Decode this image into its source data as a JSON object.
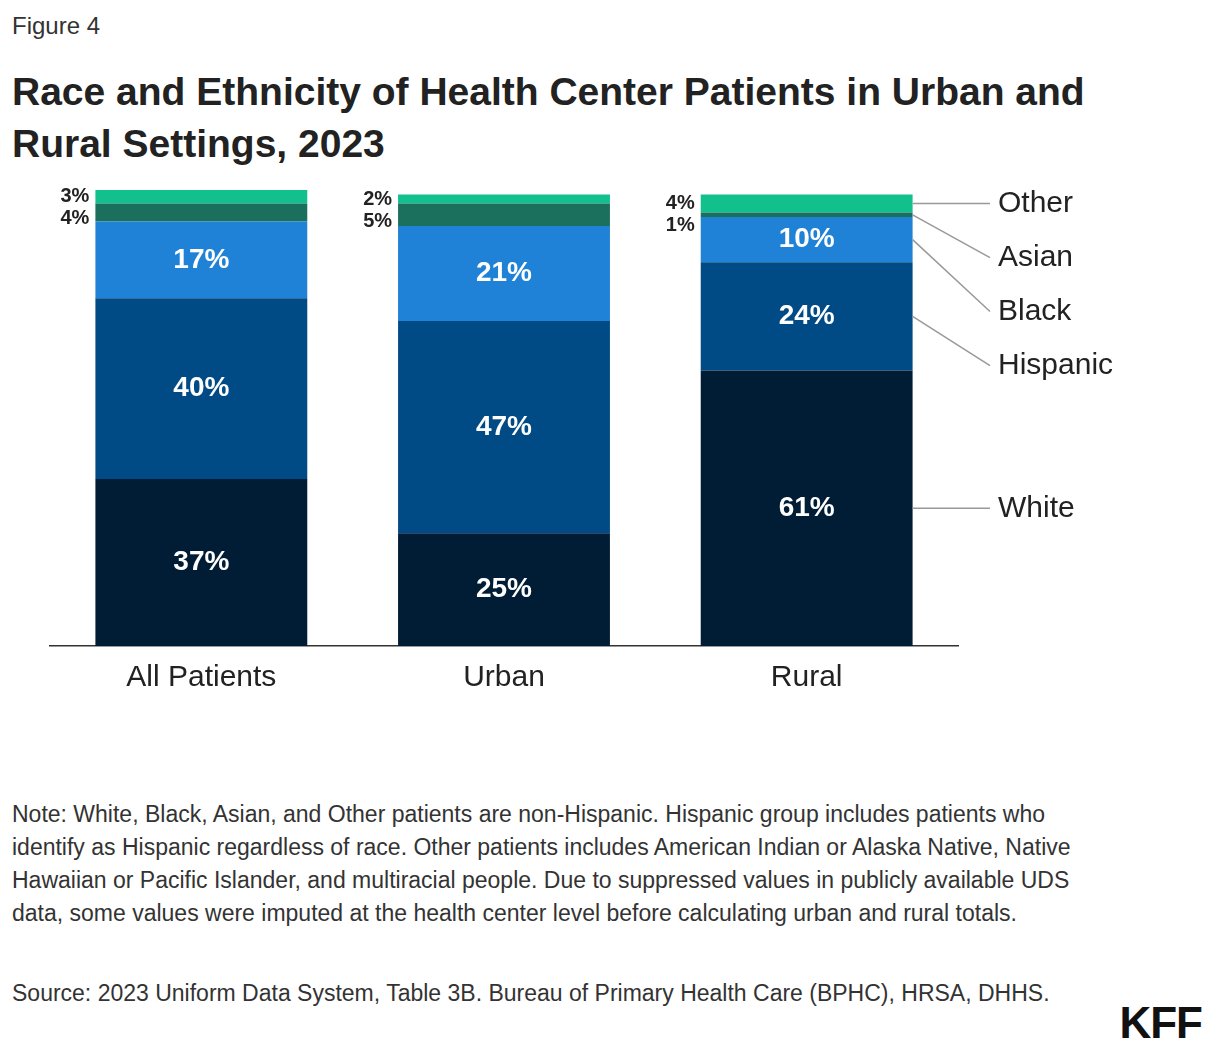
{
  "chart_data": {
    "type": "bar",
    "title": "Race and Ethnicity of Health Center Patients in Urban and Rural Settings, 2023",
    "annotations": {
      "figure": "Figure 4",
      "note": "Note: White, Black, Asian, and Other patients are non-Hispanic. Hispanic group includes patients who identify as Hispanic regardless of race. Other patients includes American Indian or Alaska Native, Native Hawaiian or Pacific Islander, and multiracial people. Due to suppressed values in publicly available UDS data, some values were imputed at the health center level before calculating urban and rural totals.",
      "source": "Source: 2023 Uniform Data System, Table 3B. Bureau of Primary Health Care (BPHC), HRSA, DHHS.",
      "logo": "KFF"
    },
    "categories": [
      "All Patients",
      "Urban",
      "Rural"
    ],
    "series": [
      {
        "name": "White",
        "color": "#001d35",
        "values": [
          37,
          25,
          61
        ],
        "value_labels": [
          "37%",
          "25%",
          "61%"
        ]
      },
      {
        "name": "Hispanic",
        "color": "#004a86",
        "values": [
          40,
          47,
          24
        ],
        "value_labels": [
          "40%",
          "47%",
          "24%"
        ]
      },
      {
        "name": "Black",
        "color": "#1f82d6",
        "values": [
          17,
          21,
          10
        ],
        "value_labels": [
          "17%",
          "21%",
          "10%"
        ]
      },
      {
        "name": "Asian",
        "color": "#1a6f5d",
        "values": [
          4,
          5,
          1
        ],
        "value_labels": [
          "4%",
          "5%",
          "1%"
        ]
      },
      {
        "name": "Other",
        "color": "#12c08d",
        "values": [
          3,
          2,
          4
        ],
        "value_labels": [
          "3%",
          "2%",
          "4%"
        ]
      }
    ],
    "stacked": true,
    "data_labels": true,
    "legend": "right",
    "grid": false,
    "tick_labels": "x",
    "ylim": [
      0,
      101
    ]
  }
}
